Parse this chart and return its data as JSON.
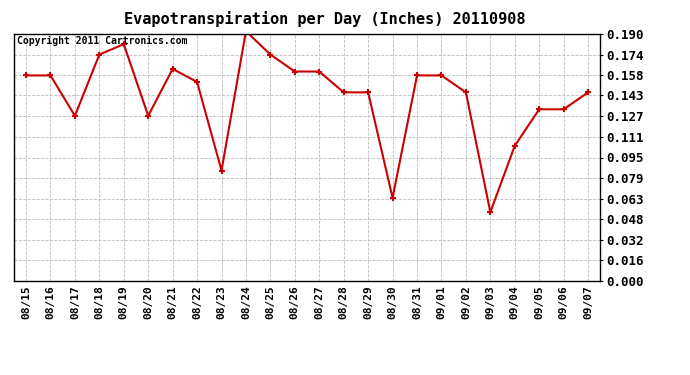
{
  "title": "Evapotranspiration per Day (Inches) 20110908",
  "copyright_text": "Copyright 2011 Cartronics.com",
  "dates": [
    "08/15",
    "08/16",
    "08/17",
    "08/18",
    "08/19",
    "08/20",
    "08/21",
    "08/22",
    "08/23",
    "08/24",
    "08/25",
    "08/26",
    "08/27",
    "08/28",
    "08/29",
    "08/30",
    "08/31",
    "09/01",
    "09/02",
    "09/03",
    "09/04",
    "09/05",
    "09/06",
    "09/07"
  ],
  "values": [
    0.158,
    0.158,
    0.127,
    0.174,
    0.182,
    0.127,
    0.163,
    0.153,
    0.085,
    0.192,
    0.174,
    0.161,
    0.161,
    0.145,
    0.145,
    0.064,
    0.158,
    0.158,
    0.145,
    0.053,
    0.104,
    0.132,
    0.132,
    0.145
  ],
  "line_color": "#cc0000",
  "marker_color": "#cc0000",
  "bg_color": "#ffffff",
  "plot_bg_color": "#ffffff",
  "grid_color": "#bbbbbb",
  "ylim": [
    0.0,
    0.19
  ],
  "yticks": [
    0.0,
    0.016,
    0.032,
    0.048,
    0.063,
    0.079,
    0.095,
    0.111,
    0.127,
    0.143,
    0.158,
    0.174,
    0.19
  ],
  "title_fontsize": 11,
  "copyright_fontsize": 7,
  "tick_fontsize": 8,
  "ytick_fontsize": 9
}
